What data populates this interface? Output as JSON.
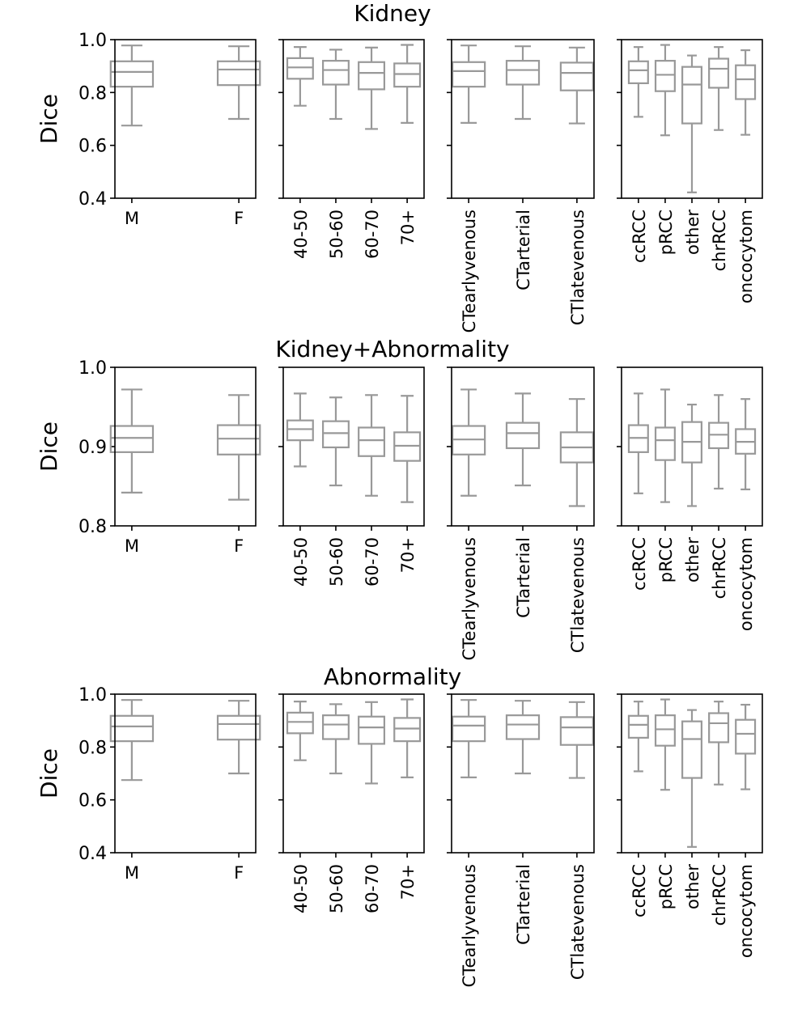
{
  "chart_data": {
    "type": "boxplot",
    "ylabel": "Dice",
    "box_color": "#999999",
    "rows": [
      {
        "title": "Kidney",
        "ylim": [
          0.4,
          1.0
        ],
        "yticks": [
          "0.4",
          "0.6",
          "0.8",
          "1.0"
        ],
        "yticks_values": [
          0.4,
          0.6,
          0.8,
          1.0
        ],
        "panels": [
          {
            "categories": [
              "M",
              "F"
            ],
            "rotate": false,
            "boxes": [
              {
                "whislo": 0.675,
                "q1": 0.822,
                "med": 0.878,
                "q3": 0.918,
                "whishi": 0.978
              },
              {
                "whislo": 0.7,
                "q1": 0.828,
                "med": 0.887,
                "q3": 0.918,
                "whishi": 0.975
              }
            ]
          },
          {
            "categories": [
              "40-50",
              "50-60",
              "60-70",
              "70+"
            ],
            "rotate": true,
            "boxes": [
              {
                "whislo": 0.75,
                "q1": 0.852,
                "med": 0.895,
                "q3": 0.93,
                "whishi": 0.972
              },
              {
                "whislo": 0.7,
                "q1": 0.83,
                "med": 0.885,
                "q3": 0.92,
                "whishi": 0.962
              },
              {
                "whislo": 0.662,
                "q1": 0.812,
                "med": 0.874,
                "q3": 0.915,
                "whishi": 0.97
              },
              {
                "whislo": 0.685,
                "q1": 0.822,
                "med": 0.87,
                "q3": 0.91,
                "whishi": 0.98
              }
            ]
          },
          {
            "categories": [
              "CTearlyvenous",
              "CTarterial",
              "CTlatevenous"
            ],
            "rotate": true,
            "boxes": [
              {
                "whislo": 0.685,
                "q1": 0.822,
                "med": 0.881,
                "q3": 0.915,
                "whishi": 0.978
              },
              {
                "whislo": 0.7,
                "q1": 0.83,
                "med": 0.885,
                "q3": 0.92,
                "whishi": 0.975
              },
              {
                "whislo": 0.683,
                "q1": 0.808,
                "med": 0.874,
                "q3": 0.913,
                "whishi": 0.97
              }
            ]
          },
          {
            "categories": [
              "ccRCC",
              "pRCC",
              "other",
              "chrRCC",
              "oncocytom"
            ],
            "rotate": true,
            "boxes": [
              {
                "whislo": 0.708,
                "q1": 0.835,
                "med": 0.884,
                "q3": 0.918,
                "whishi": 0.972
              },
              {
                "whislo": 0.638,
                "q1": 0.805,
                "med": 0.867,
                "q3": 0.92,
                "whishi": 0.98
              },
              {
                "whislo": 0.422,
                "q1": 0.683,
                "med": 0.83,
                "q3": 0.897,
                "whishi": 0.94
              },
              {
                "whislo": 0.658,
                "q1": 0.818,
                "med": 0.89,
                "q3": 0.928,
                "whishi": 0.972
              },
              {
                "whislo": 0.64,
                "q1": 0.775,
                "med": 0.85,
                "q3": 0.903,
                "whishi": 0.96
              }
            ]
          }
        ]
      },
      {
        "title": "Kidney+Abnormality",
        "ylim": [
          0.8,
          1.0
        ],
        "yticks": [
          "0.8",
          "0.9",
          "1.0"
        ],
        "yticks_values": [
          0.8,
          0.9,
          1.0
        ],
        "panels": [
          {
            "categories": [
              "M",
              "F"
            ],
            "rotate": false,
            "boxes": [
              {
                "whislo": 0.842,
                "q1": 0.893,
                "med": 0.911,
                "q3": 0.926,
                "whishi": 0.972
              },
              {
                "whislo": 0.833,
                "q1": 0.89,
                "med": 0.91,
                "q3": 0.927,
                "whishi": 0.965
              }
            ]
          },
          {
            "categories": [
              "40-50",
              "50-60",
              "60-70",
              "70+"
            ],
            "rotate": true,
            "boxes": [
              {
                "whislo": 0.875,
                "q1": 0.908,
                "med": 0.922,
                "q3": 0.933,
                "whishi": 0.967
              },
              {
                "whislo": 0.851,
                "q1": 0.899,
                "med": 0.917,
                "q3": 0.932,
                "whishi": 0.962
              },
              {
                "whislo": 0.838,
                "q1": 0.888,
                "med": 0.908,
                "q3": 0.924,
                "whishi": 0.965
              },
              {
                "whislo": 0.83,
                "q1": 0.882,
                "med": 0.901,
                "q3": 0.918,
                "whishi": 0.964
              }
            ]
          },
          {
            "categories": [
              "CTearlyvenous",
              "CTarterial",
              "CTlatevenous"
            ],
            "rotate": true,
            "boxes": [
              {
                "whislo": 0.838,
                "q1": 0.89,
                "med": 0.909,
                "q3": 0.926,
                "whishi": 0.972
              },
              {
                "whislo": 0.851,
                "q1": 0.898,
                "med": 0.917,
                "q3": 0.93,
                "whishi": 0.967
              },
              {
                "whislo": 0.825,
                "q1": 0.88,
                "med": 0.899,
                "q3": 0.918,
                "whishi": 0.96
              }
            ]
          },
          {
            "categories": [
              "ccRCC",
              "pRCC",
              "other",
              "chrRCC",
              "oncocytom"
            ],
            "rotate": true,
            "boxes": [
              {
                "whislo": 0.841,
                "q1": 0.893,
                "med": 0.911,
                "q3": 0.927,
                "whishi": 0.967
              },
              {
                "whislo": 0.83,
                "q1": 0.883,
                "med": 0.908,
                "q3": 0.924,
                "whishi": 0.972
              },
              {
                "whislo": 0.825,
                "q1": 0.88,
                "med": 0.906,
                "q3": 0.931,
                "whishi": 0.953
              },
              {
                "whislo": 0.847,
                "q1": 0.898,
                "med": 0.915,
                "q3": 0.93,
                "whishi": 0.965
              },
              {
                "whislo": 0.846,
                "q1": 0.891,
                "med": 0.906,
                "q3": 0.922,
                "whishi": 0.96
              }
            ]
          }
        ]
      },
      {
        "title": "Abnormality",
        "ylim": [
          0.4,
          1.0
        ],
        "yticks": [
          "0.4",
          "0.6",
          "0.8",
          "1.0"
        ],
        "yticks_values": [
          0.4,
          0.6,
          0.8,
          1.0
        ],
        "panels": [
          {
            "categories": [
              "M",
              "F"
            ],
            "rotate": false,
            "boxes": [
              {
                "whislo": 0.675,
                "q1": 0.822,
                "med": 0.878,
                "q3": 0.918,
                "whishi": 0.978
              },
              {
                "whislo": 0.7,
                "q1": 0.828,
                "med": 0.887,
                "q3": 0.918,
                "whishi": 0.975
              }
            ]
          },
          {
            "categories": [
              "40-50",
              "50-60",
              "60-70",
              "70+"
            ],
            "rotate": true,
            "boxes": [
              {
                "whislo": 0.75,
                "q1": 0.852,
                "med": 0.895,
                "q3": 0.93,
                "whishi": 0.972
              },
              {
                "whislo": 0.7,
                "q1": 0.83,
                "med": 0.885,
                "q3": 0.92,
                "whishi": 0.962
              },
              {
                "whislo": 0.662,
                "q1": 0.812,
                "med": 0.874,
                "q3": 0.915,
                "whishi": 0.97
              },
              {
                "whislo": 0.685,
                "q1": 0.822,
                "med": 0.87,
                "q3": 0.91,
                "whishi": 0.98
              }
            ]
          },
          {
            "categories": [
              "CTearlyvenous",
              "CTarterial",
              "CTlatevenous"
            ],
            "rotate": true,
            "boxes": [
              {
                "whislo": 0.685,
                "q1": 0.822,
                "med": 0.881,
                "q3": 0.915,
                "whishi": 0.978
              },
              {
                "whislo": 0.7,
                "q1": 0.83,
                "med": 0.885,
                "q3": 0.92,
                "whishi": 0.975
              },
              {
                "whislo": 0.683,
                "q1": 0.808,
                "med": 0.874,
                "q3": 0.913,
                "whishi": 0.97
              }
            ]
          },
          {
            "categories": [
              "ccRCC",
              "pRCC",
              "other",
              "chrRCC",
              "oncocytom"
            ],
            "rotate": true,
            "boxes": [
              {
                "whislo": 0.708,
                "q1": 0.835,
                "med": 0.884,
                "q3": 0.918,
                "whishi": 0.972
              },
              {
                "whislo": 0.638,
                "q1": 0.805,
                "med": 0.867,
                "q3": 0.92,
                "whishi": 0.98
              },
              {
                "whislo": 0.422,
                "q1": 0.683,
                "med": 0.83,
                "q3": 0.897,
                "whishi": 0.94
              },
              {
                "whislo": 0.658,
                "q1": 0.818,
                "med": 0.89,
                "q3": 0.928,
                "whishi": 0.972
              },
              {
                "whislo": 0.64,
                "q1": 0.775,
                "med": 0.85,
                "q3": 0.903,
                "whishi": 0.96
              }
            ]
          }
        ]
      }
    ]
  }
}
